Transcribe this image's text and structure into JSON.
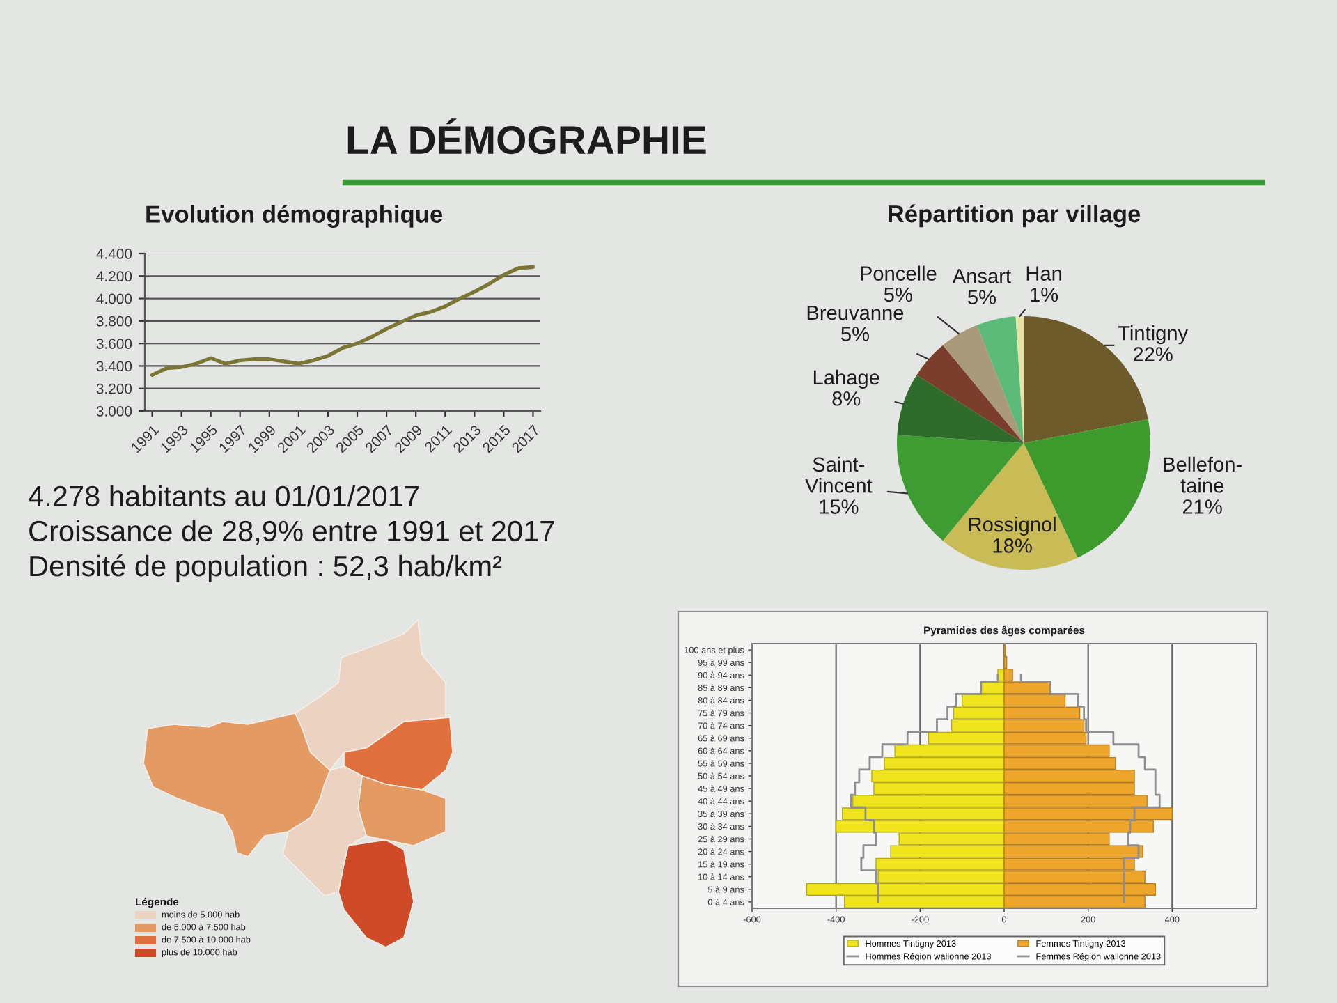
{
  "chart_data": [
    {
      "type": "other",
      "title": "LA DÉMOGRAPHIE"
    },
    {
      "type": "line",
      "title": "Evolution démographique",
      "x": [
        1991,
        1992,
        1993,
        1994,
        1995,
        1996,
        1997,
        1998,
        1999,
        2000,
        2001,
        2002,
        2003,
        2004,
        2005,
        2006,
        2007,
        2008,
        2009,
        2010,
        2011,
        2012,
        2013,
        2014,
        2015,
        2016,
        2017
      ],
      "values": [
        3320,
        3380,
        3390,
        3420,
        3470,
        3420,
        3450,
        3460,
        3460,
        3440,
        3420,
        3450,
        3490,
        3560,
        3600,
        3660,
        3730,
        3790,
        3850,
        3880,
        3930,
        4000,
        4060,
        4130,
        4210,
        4270,
        4280
      ],
      "color": "#7b7634",
      "xlim": [
        1990.5,
        2017.5
      ],
      "xticks": [
        1991,
        1993,
        1995,
        1997,
        1999,
        2001,
        2003,
        2005,
        2007,
        2009,
        2011,
        2013,
        2015,
        2017
      ],
      "ylim": [
        3000,
        4400
      ],
      "yticks": [
        {
          "value": 3000,
          "label": "3.000"
        },
        {
          "value": 3200,
          "label": "3.200"
        },
        {
          "value": 3400,
          "label": "3.400"
        },
        {
          "value": 3600,
          "label": "3.600"
        },
        {
          "value": 3800,
          "label": "3.800"
        },
        {
          "value": 4000,
          "label": "4.000"
        },
        {
          "value": 4200,
          "label": "4.200"
        },
        {
          "value": 4400,
          "label": "4.400"
        }
      ],
      "grid": "y"
    },
    {
      "type": "pie",
      "title": "Répartition par village",
      "categories": [
        "Tintigny",
        "Bellefon-\ntaine",
        "Rossignol",
        "Saint-\nVincent",
        "Lahage",
        "Breuvanne",
        "Poncelle",
        "Ansart",
        "Han"
      ],
      "values": [
        22,
        21,
        18,
        15,
        8,
        5,
        5,
        5,
        1
      ],
      "value_labels": [
        "22%",
        "21%",
        "18%",
        "15%",
        "8%",
        "5%",
        "5%",
        "5%",
        "1%"
      ],
      "colors": [
        "#6e5b2c",
        "#3f9a2e",
        "#c9bb55",
        "#3e9c33",
        "#2f6b2a",
        "#7b3d2c",
        "#a89a7a",
        "#5dbb7a",
        "#e6e2a8"
      ]
    },
    {
      "type": "other",
      "annotations": [
        "4.278 habitants au 01/01/2017",
        "Croissance de 28,9% entre 1991 et 2017",
        "Densité de population : 52,3 hab/km²"
      ]
    },
    {
      "type": "other",
      "title": "Légende",
      "annotations": [
        "moins de 5.000 hab",
        "de 5.000 à 7.500 hab",
        "de 7.500 à 10.000 hab",
        "plus de 10.000 hab"
      ],
      "colors": [
        "#ecd2c0",
        "#e39a63",
        "#e0703e",
        "#cf4a26"
      ]
    },
    {
      "type": "bar",
      "orientation": "horizontal",
      "stacked": true,
      "title": "Pyramides des âges comparées",
      "categories": [
        "100 ans et plus",
        "95 à 99 ans",
        "90 à 94 ans",
        "85 à 89 ans",
        "80 à 84 ans",
        "75 à 79 ans",
        "70 à 74 ans",
        "65 à 69 ans",
        "60 à 64 ans",
        "55 à 59 ans",
        "50 à 54 ans",
        "45 à 49 ans",
        "40 à 44 ans",
        "35 à 39 ans",
        "30 à 34 ans",
        "25 à 29 ans",
        "20 à 24 ans",
        "15 à 19 ans",
        "10 à 14 ans",
        "5 à 9 ans",
        "0 à 4 ans"
      ],
      "series": [
        {
          "name": "Hommes Tintigny 2013",
          "type": "bar",
          "color": "#f0e41e",
          "values": [
            null,
            null,
            -15,
            -55,
            -100,
            -120,
            -125,
            -180,
            -260,
            -285,
            -315,
            -310,
            -360,
            -385,
            -400,
            -250,
            -270,
            -305,
            -300,
            -470,
            -380
          ]
        },
        {
          "name": "Hommes Région wallonne 2013",
          "type": "step",
          "color": "#8e8e8e",
          "values": [
            null,
            null,
            -15,
            -55,
            -115,
            -135,
            -160,
            -230,
            -290,
            -320,
            -345,
            -355,
            -365,
            -330,
            -310,
            -305,
            -335,
            -340,
            -305,
            -300,
            -300
          ]
        },
        {
          "name": "Femmes Tintigny 2013",
          "type": "bar",
          "color": "#eea52c",
          "values": [
            3,
            6,
            20,
            110,
            145,
            180,
            190,
            195,
            250,
            265,
            310,
            310,
            340,
            400,
            355,
            250,
            330,
            310,
            335,
            360,
            335
          ]
        },
        {
          "name": "Femmes Région wallonne 2013",
          "type": "step",
          "color": "#8e8e8e",
          "values": [
            null,
            null,
            40,
            110,
            175,
            190,
            195,
            260,
            320,
            335,
            360,
            360,
            370,
            310,
            300,
            295,
            320,
            285,
            285,
            285,
            285
          ]
        }
      ],
      "xlim": [
        -600,
        600
      ],
      "xticks": [
        -600,
        -400,
        -200,
        0,
        200,
        400
      ],
      "grid": "x",
      "legend": "bottom"
    }
  ]
}
